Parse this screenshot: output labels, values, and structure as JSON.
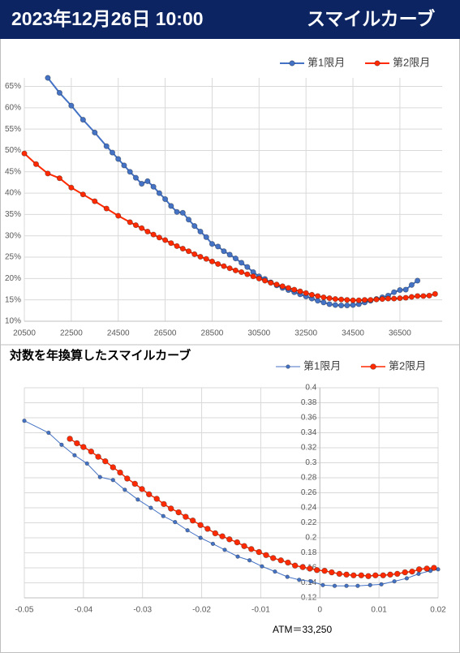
{
  "header": {
    "datetime": "2023年12月26日 10:00",
    "title": "スマイルカーブ"
  },
  "chart_data": [
    {
      "type": "line",
      "legend": "top-right",
      "grid": true,
      "xlim": [
        20500,
        38300
      ],
      "xticks": [
        20500,
        22500,
        24500,
        26500,
        28500,
        30500,
        32500,
        34500,
        36500
      ],
      "ylim": [
        10,
        67
      ],
      "yticks": [
        {
          "value": 10,
          "label": "10%"
        },
        {
          "value": 15,
          "label": "15%"
        },
        {
          "value": 20,
          "label": "20%"
        },
        {
          "value": 25,
          "label": "25%"
        },
        {
          "value": 30,
          "label": "30%"
        },
        {
          "value": 35,
          "label": "35%"
        },
        {
          "value": 40,
          "label": "40%"
        },
        {
          "value": 45,
          "label": "45%"
        },
        {
          "value": 50,
          "label": "50%"
        },
        {
          "value": 55,
          "label": "55%"
        },
        {
          "value": 60,
          "label": "60%"
        },
        {
          "value": 65,
          "label": "65%"
        }
      ],
      "series": [
        {
          "name": "第1限月",
          "color": "#4472c4",
          "x": [
            21500,
            22000,
            22500,
            23000,
            23500,
            24000,
            24250,
            24500,
            24750,
            25000,
            25250,
            25500,
            25750,
            26000,
            26250,
            26500,
            26750,
            27000,
            27250,
            27500,
            27750,
            28000,
            28250,
            28500,
            28750,
            29000,
            29250,
            29500,
            29750,
            30000,
            30250,
            30500,
            30750,
            31000,
            31250,
            31500,
            31750,
            32000,
            32250,
            32500,
            32750,
            33000,
            33250,
            33500,
            33750,
            34000,
            34250,
            34500,
            34750,
            35000,
            35250,
            35500,
            35750,
            36000,
            36250,
            36500,
            36750,
            37000,
            37250
          ],
          "values": [
            67,
            63.5,
            60.5,
            57.2,
            54.2,
            51,
            49.5,
            48,
            46.5,
            45,
            43.6,
            42.2,
            42.8,
            41.5,
            40,
            38.6,
            37,
            35.6,
            35.4,
            33.8,
            32.3,
            31,
            29.7,
            28.1,
            27.5,
            26.4,
            25.6,
            24.7,
            23.7,
            22.7,
            21.5,
            20.5,
            19.9,
            19.1,
            18.4,
            17.8,
            17.3,
            16.8,
            16.3,
            15.8,
            15.3,
            14.8,
            14.4,
            14.0,
            13.8,
            13.7,
            13.7,
            13.8,
            14.0,
            14.4,
            14.8,
            15.2,
            15.6,
            16.0,
            16.8,
            17.3,
            17.4,
            18.5,
            19.5
          ]
        },
        {
          "name": "第2限月",
          "color": "#ff2a00",
          "x": [
            20500,
            21000,
            21500,
            22000,
            22500,
            23000,
            23500,
            24000,
            24500,
            25000,
            25250,
            25500,
            25750,
            26000,
            26250,
            26500,
            26750,
            27000,
            27250,
            27500,
            27750,
            28000,
            28250,
            28500,
            28750,
            29000,
            29250,
            29500,
            29750,
            30000,
            30250,
            30500,
            30750,
            31000,
            31250,
            31500,
            31750,
            32000,
            32250,
            32500,
            32750,
            33000,
            33250,
            33500,
            33750,
            34000,
            34250,
            34500,
            34750,
            35000,
            35250,
            35500,
            35750,
            36000,
            36250,
            36500,
            36750,
            37000,
            37250,
            37500,
            37750,
            38000
          ],
          "values": [
            49.3,
            46.8,
            44.6,
            43.5,
            41.3,
            39.7,
            38.1,
            36.4,
            34.7,
            33.2,
            32.5,
            31.8,
            31,
            30.3,
            29.6,
            29,
            28.3,
            27.6,
            27,
            26.4,
            25.7,
            25.1,
            24.6,
            24,
            23.4,
            22.9,
            22.4,
            21.9,
            21.5,
            21,
            20.5,
            20,
            19.5,
            19,
            18.6,
            18.2,
            17.8,
            17.4,
            17,
            16.6,
            16.2,
            15.9,
            15.6,
            15.4,
            15.2,
            15.1,
            15,
            14.9,
            14.9,
            15,
            15,
            15.1,
            15.2,
            15.3,
            15.3,
            15.4,
            15.5,
            15.7,
            15.9,
            15.9,
            16.0,
            16.4
          ]
        }
      ]
    },
    {
      "type": "line",
      "title": "対数を年換算したスマイルカーブ",
      "annotation": "ATM＝33,250",
      "legend": "top-right",
      "grid": true,
      "xlim": [
        -0.05,
        0.02
      ],
      "xticks": [
        -0.05,
        -0.04,
        -0.03,
        -0.02,
        -0.01,
        0,
        0.01,
        0.02
      ],
      "ylim": [
        0.12,
        0.4
      ],
      "yticks": [
        0.12,
        0.14,
        0.16,
        0.18,
        0.2,
        0.22,
        0.24,
        0.26,
        0.28,
        0.3,
        0.32,
        0.34,
        0.36,
        0.38,
        0.4
      ],
      "series": [
        {
          "name": "第1限月",
          "color": "#4472c4",
          "x": [
            -0.05,
            -0.0459,
            -0.0437,
            -0.0415,
            -0.0394,
            -0.0372,
            -0.035,
            -0.033,
            -0.0308,
            -0.0286,
            -0.0265,
            -0.0245,
            -0.0224,
            -0.0202,
            -0.0181,
            -0.0161,
            -0.0139,
            -0.0119,
            -0.0098,
            -0.0076,
            -0.0055,
            -0.0035,
            -0.0015,
            0.0005,
            0.0025,
            0.0045,
            0.0064,
            0.0085,
            0.0104,
            0.0126,
            0.0147,
            0.0167,
            0.0187,
            0.02
          ],
          "values": [
            0.356,
            0.34,
            0.324,
            0.31,
            0.299,
            0.281,
            0.277,
            0.264,
            0.251,
            0.24,
            0.229,
            0.221,
            0.21,
            0.2,
            0.192,
            0.184,
            0.175,
            0.17,
            0.162,
            0.155,
            0.148,
            0.144,
            0.142,
            0.137,
            0.136,
            0.136,
            0.136,
            0.137,
            0.138,
            0.142,
            0.146,
            0.152,
            0.156,
            0.158
          ]
        },
        {
          "name": "第2限月",
          "color": "#ff2a00",
          "x": [
            -0.0423,
            -0.0411,
            -0.04,
            -0.0387,
            -0.0375,
            -0.0363,
            -0.035,
            -0.0338,
            -0.0326,
            -0.0313,
            -0.0301,
            -0.0289,
            -0.0276,
            -0.0264,
            -0.0252,
            -0.0239,
            -0.0227,
            -0.0215,
            -0.0202,
            -0.019,
            -0.0177,
            -0.0165,
            -0.0153,
            -0.014,
            -0.0128,
            -0.0116,
            -0.0103,
            -0.0091,
            -0.0079,
            -0.0066,
            -0.0054,
            -0.0042,
            -0.0029,
            -0.0017,
            -0.0005,
            0.0008,
            0.002,
            0.0033,
            0.0045,
            0.0057,
            0.007,
            0.0082,
            0.0094,
            0.0107,
            0.0119,
            0.0131,
            0.0144,
            0.0156,
            0.0168,
            0.0181,
            0.0193
          ],
          "values": [
            0.332,
            0.326,
            0.321,
            0.315,
            0.308,
            0.302,
            0.294,
            0.287,
            0.279,
            0.272,
            0.265,
            0.258,
            0.252,
            0.245,
            0.239,
            0.234,
            0.228,
            0.223,
            0.217,
            0.212,
            0.206,
            0.202,
            0.198,
            0.194,
            0.189,
            0.185,
            0.181,
            0.177,
            0.173,
            0.17,
            0.167,
            0.163,
            0.161,
            0.159,
            0.157,
            0.156,
            0.154,
            0.152,
            0.151,
            0.15,
            0.15,
            0.149,
            0.15,
            0.15,
            0.151,
            0.152,
            0.154,
            0.155,
            0.158,
            0.159,
            0.16
          ]
        }
      ]
    }
  ]
}
